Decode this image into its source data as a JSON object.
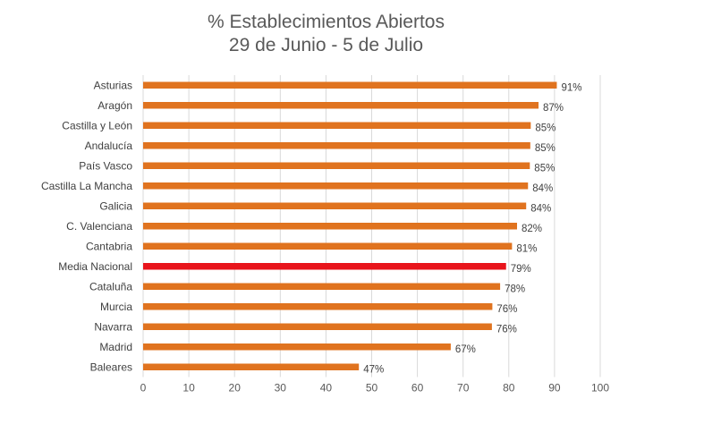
{
  "chart_data": {
    "type": "bar",
    "orientation": "horizontal",
    "title": "% Establecimientos Abiertos",
    "subtitle": "29 de Junio - 5 de Julio",
    "categories": [
      "Asturias",
      "Aragón",
      "Castilla y León",
      "Andalucía",
      "País Vasco",
      "Castilla La Mancha",
      "Galicia",
      "C. Valenciana",
      "Cantabria",
      "Media Nacional",
      "Cataluña",
      "Murcia",
      "Navarra",
      "Madrid",
      "Baleares"
    ],
    "values": [
      90.5,
      86.5,
      84.8,
      84.7,
      84.6,
      84.2,
      83.8,
      81.8,
      80.7,
      79.4,
      78.1,
      76.4,
      76.3,
      67.3,
      47.2
    ],
    "data_labels": [
      "91%",
      "87%",
      "85%",
      "85%",
      "85%",
      "84%",
      "84%",
      "82%",
      "81%",
      "79%",
      "78%",
      "76%",
      "76%",
      "67%",
      "47%"
    ],
    "xlim": [
      0,
      100
    ],
    "xticks": [
      "0",
      "10",
      "20",
      "30",
      "40",
      "50",
      "60",
      "70",
      "80",
      "90",
      "100"
    ],
    "highlight_category": "Media Nacional",
    "grid": "vertical",
    "legend": "none",
    "colors": {
      "bar": "#E0731F",
      "highlight": "#E8141B",
      "grid": "#D9D9D9",
      "text": "#404040",
      "title": "#595959"
    }
  }
}
